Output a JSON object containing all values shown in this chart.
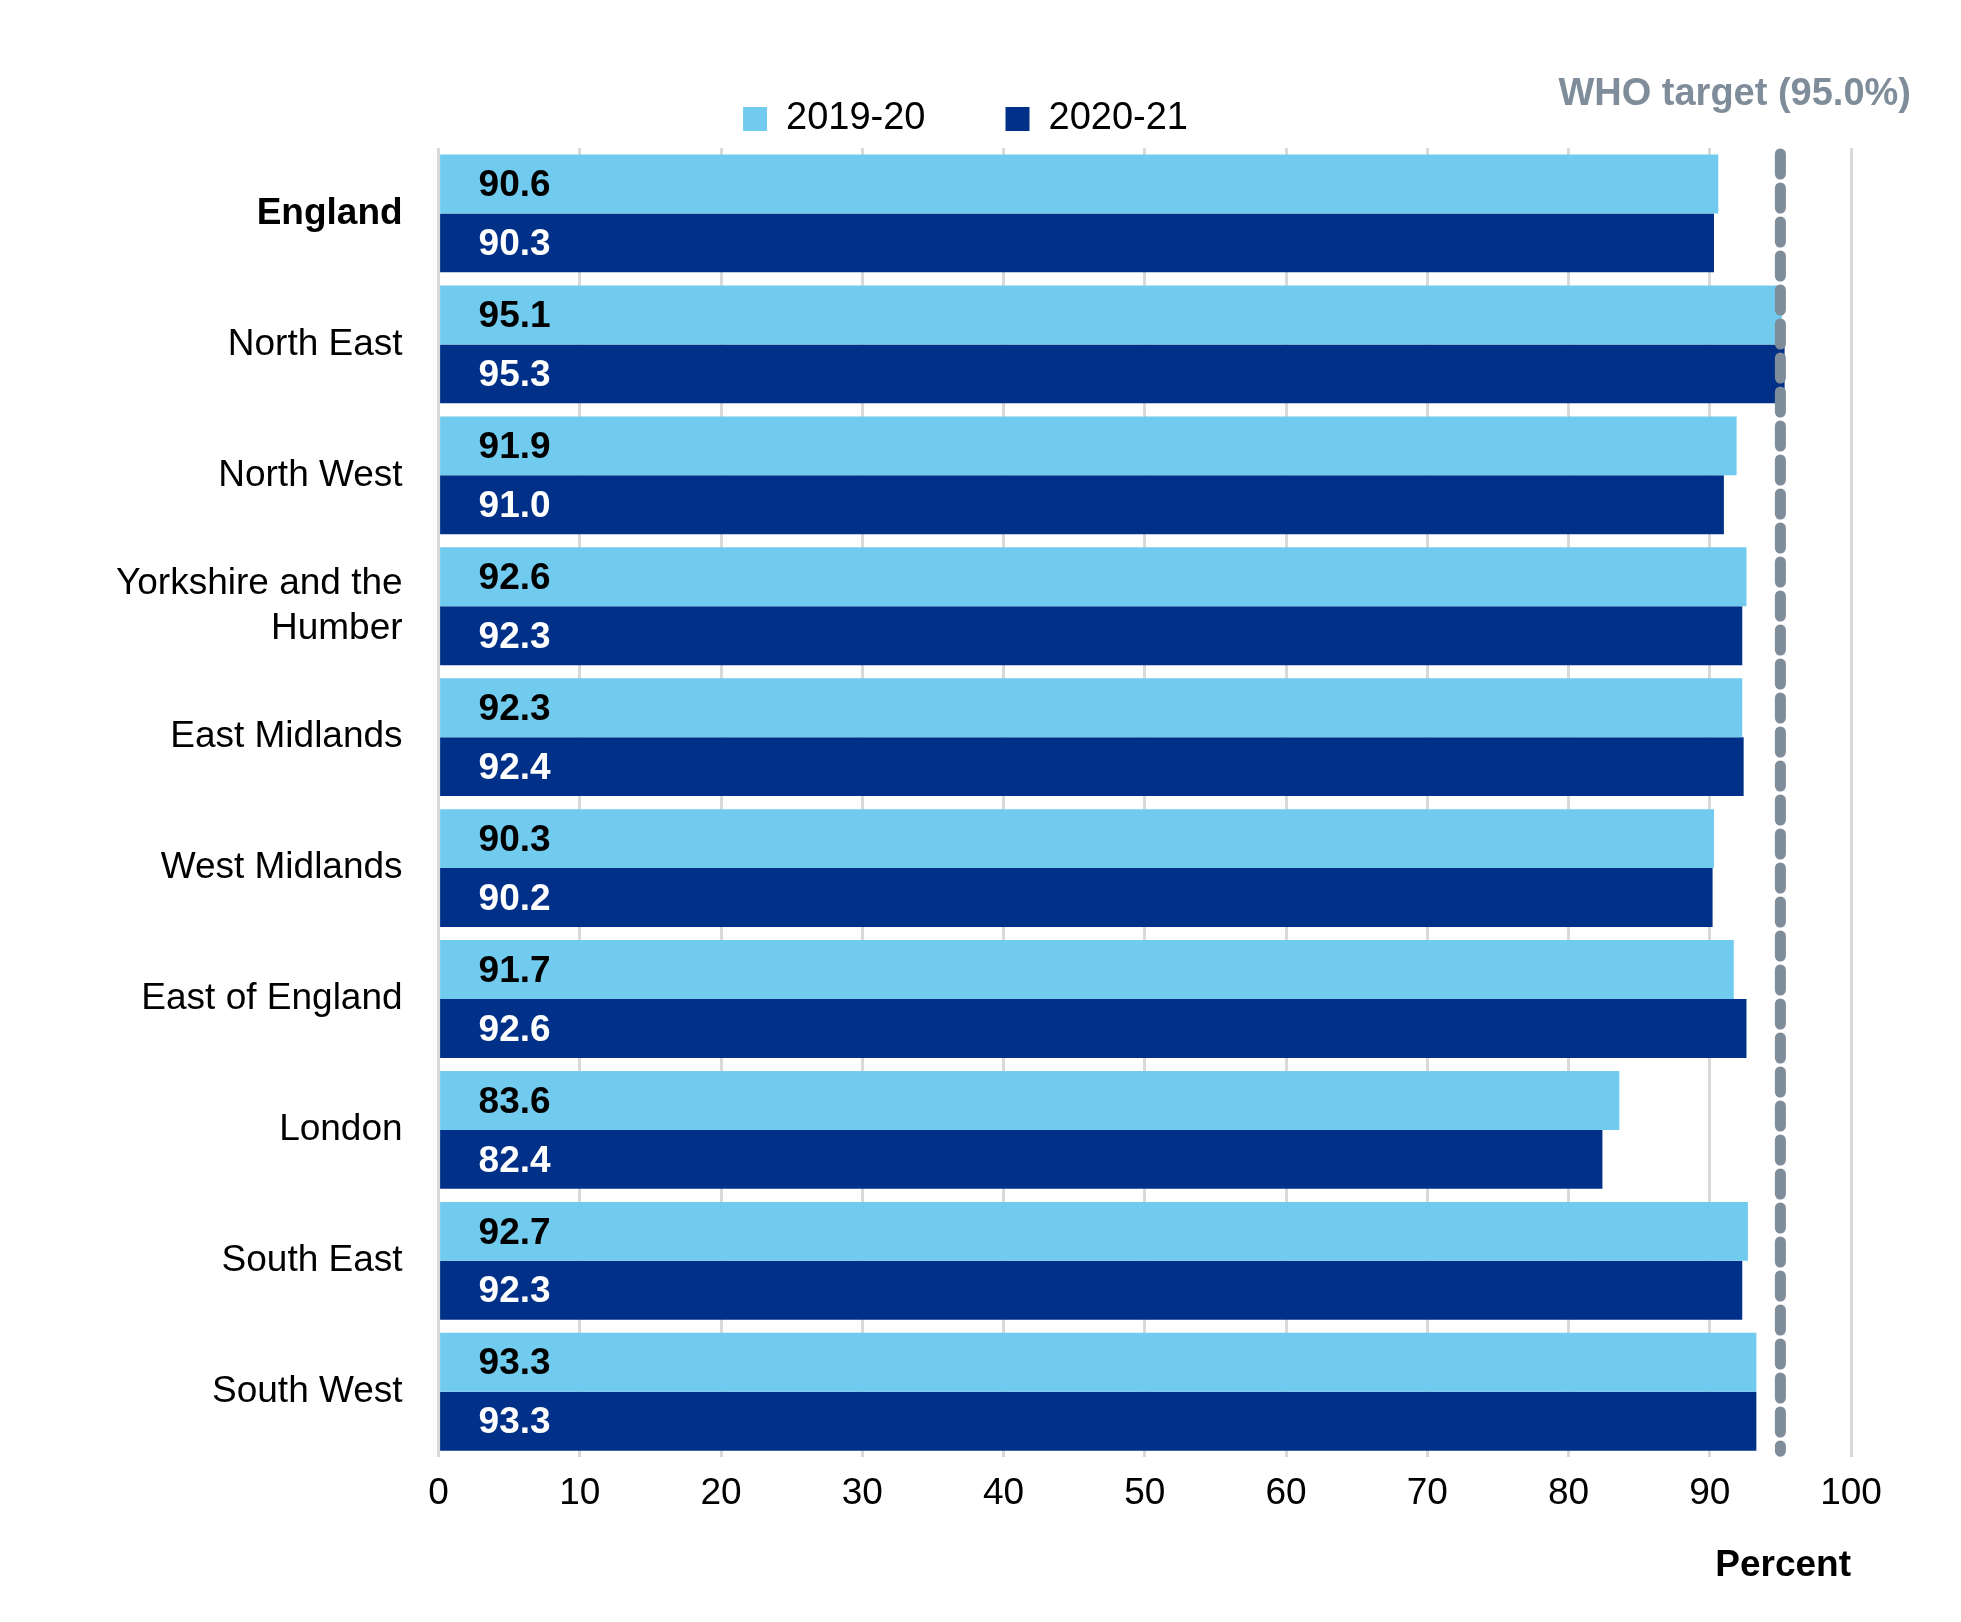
{
  "chart_data": {
    "type": "bar",
    "orientation": "horizontal",
    "xlabel": "Percent",
    "categories": [
      "England",
      "North East",
      "North West",
      "Yorkshire and the Humber",
      "East Midlands",
      "West Midlands",
      "East of England",
      "London",
      "South East",
      "South West"
    ],
    "series": [
      {
        "name": "2019-20",
        "color": "#70cbee",
        "values": [
          90.6,
          95.1,
          91.9,
          92.6,
          92.3,
          90.3,
          91.7,
          83.6,
          92.7,
          93.3
        ],
        "value_labels": [
          "90.6",
          "95.1",
          "91.9",
          "92.6",
          "92.3",
          "90.3",
          "91.7",
          "83.6",
          "92.7",
          "93.3"
        ]
      },
      {
        "name": "2020-21",
        "color": "#003087",
        "values": [
          90.3,
          95.3,
          91.0,
          92.3,
          92.4,
          90.2,
          92.6,
          82.4,
          92.3,
          93.3
        ],
        "value_labels": [
          "90.3",
          "95.3",
          "91.0",
          "92.3",
          "92.4",
          "90.2",
          "92.6",
          "82.4",
          "92.3",
          "93.3"
        ]
      }
    ],
    "xlim": [
      0,
      100
    ],
    "xticks": [
      0,
      10,
      20,
      30,
      40,
      50,
      60,
      70,
      80,
      90,
      100
    ],
    "grid": "x",
    "legend": "top",
    "ref_lines": [
      {
        "axis": "x",
        "value": 95,
        "label": "WHO target (95.0%)",
        "color": "#7f8c99",
        "line_style": "dashed"
      }
    ]
  }
}
